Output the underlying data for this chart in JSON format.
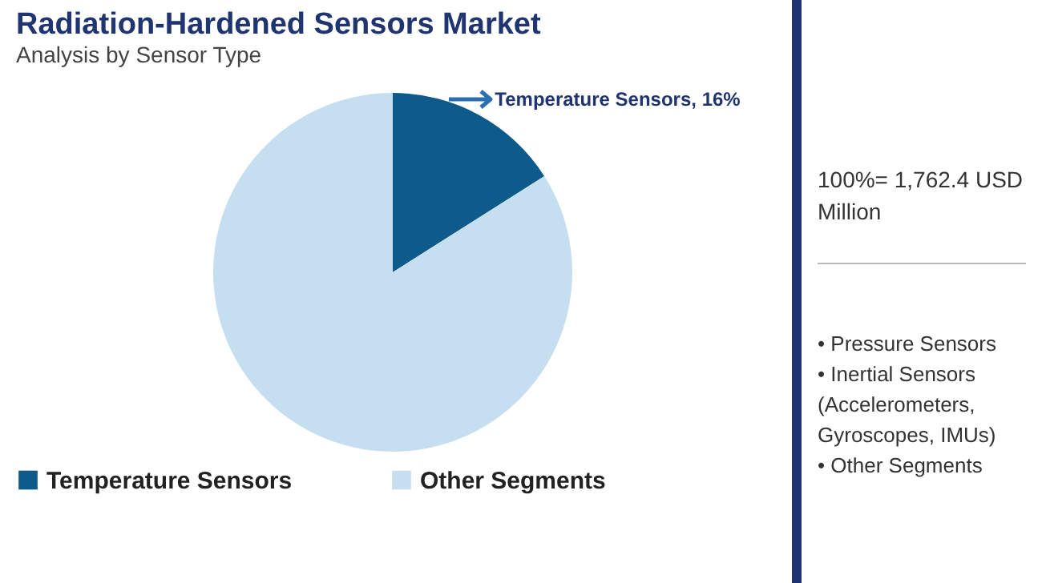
{
  "chart_data": {
    "type": "pie",
    "title": "Radiation-Hardened Sensors Market",
    "subtitle": "Analysis by Sensor Type",
    "categories": [
      "Temperature Sensors",
      "Other Segments"
    ],
    "values": [
      16,
      84
    ],
    "colors": [
      "#0e5a8a",
      "#c6dff0"
    ],
    "value_labels": [
      "Temperature Sensors, 16%",
      null
    ],
    "legend": "bottom",
    "annotations": [
      "100%= 1,762.4 USD Million",
      "• Pressure Sensors",
      "• Inertial Sensors (Accelerometers, Gyroscopes, IMUs)",
      "• Other Segments"
    ]
  }
}
